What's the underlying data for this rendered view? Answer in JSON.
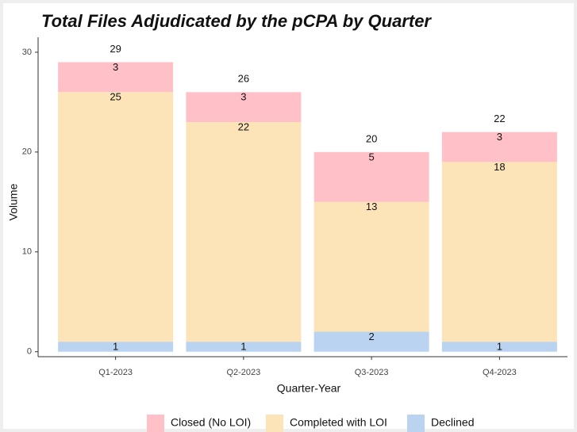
{
  "chart_data": {
    "type": "stacked_bar",
    "title": "Total Files Adjudicated by the pCPA by Quarter",
    "x_label": "Quarter-Year",
    "y_label": "Volume",
    "categories": [
      "Q1-2023",
      "Q2-2023",
      "Q3-2023",
      "Q4-2023"
    ],
    "series": [
      {
        "name": "Closed (No LOI)",
        "color": "#ffc0c7",
        "values": [
          3,
          3,
          5,
          3
        ]
      },
      {
        "name": "Completed with LOI",
        "color": "#fde4b8",
        "values": [
          25,
          22,
          13,
          18
        ]
      },
      {
        "name": "Declined",
        "color": "#b9d3f0",
        "values": [
          1,
          1,
          2,
          1
        ]
      }
    ],
    "totals": [
      29,
      26,
      20,
      22
    ],
    "ylim": [
      -0.5,
      31.5
    ],
    "yticks": [
      0,
      10,
      20,
      30
    ],
    "legend": "bottom"
  }
}
